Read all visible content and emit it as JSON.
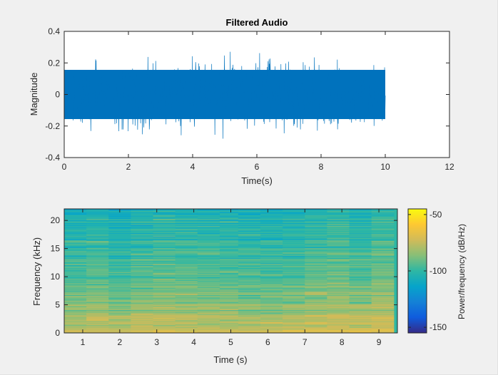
{
  "chart_data": [
    {
      "type": "line",
      "title": "Filtered Audio",
      "xlabel": "Time(s)",
      "ylabel": "Magnitude",
      "xlim": [
        0,
        12
      ],
      "ylim": [
        -0.4,
        0.4
      ],
      "xticks": [
        "0",
        "2",
        "4",
        "6",
        "8",
        "10",
        "12"
      ],
      "yticks": [
        "-0.4",
        "-0.2",
        "0",
        "0.2",
        "0.4"
      ],
      "signal": {
        "duration_s": 10,
        "typical_envelope": 0.2,
        "peak_max": 0.3,
        "peak_min": -0.28
      },
      "line_color": "#0072bd",
      "grid": false
    },
    {
      "type": "heatmap",
      "title": "",
      "xlabel": "Time (s)",
      "ylabel": "Frequency (kHz)",
      "xlim": [
        0.5,
        9.5
      ],
      "ylim": [
        0,
        22.05
      ],
      "xticks": [
        "1",
        "2",
        "3",
        "4",
        "5",
        "6",
        "7",
        "8",
        "9"
      ],
      "yticks": [
        "0",
        "5",
        "10",
        "15",
        "20"
      ],
      "time_bins_center_s": [
        0.58,
        1.15,
        1.73,
        2.3,
        2.88,
        3.45,
        4.03,
        4.6,
        5.18
      ],
      "time_frame_edges_s": [
        0.5,
        1.1,
        1.7,
        2.3,
        2.9,
        3.5,
        4.1,
        4.7,
        5.2,
        5.8,
        6.4,
        7.0,
        7.6,
        8.2,
        8.8,
        9.4
      ],
      "power_range_db": [
        -155,
        -45
      ],
      "power_profile_db_by_khz": [
        {
          "khz": 0,
          "db": -72
        },
        {
          "khz": 2,
          "db": -78
        },
        {
          "khz": 5,
          "db": -86
        },
        {
          "khz": 10,
          "db": -93
        },
        {
          "khz": 15,
          "db": -98
        },
        {
          "khz": 20,
          "db": -103
        },
        {
          "khz": 22,
          "db": -108
        }
      ],
      "colorbar": {
        "label": "Power/frequency (dB/Hz)",
        "ticks": [
          "-50",
          "-100",
          "-150"
        ],
        "tick_values": [
          -50,
          -100,
          -150
        ],
        "range": [
          -155,
          -45
        ],
        "colormap": "parula"
      }
    }
  ]
}
